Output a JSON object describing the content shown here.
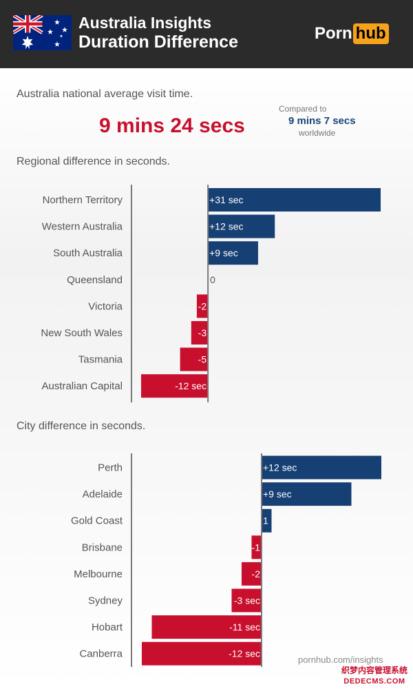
{
  "header": {
    "title_line1": "Australia Insights",
    "title_line2": "Duration Difference",
    "logo_part1": "Porn",
    "logo_part2": "hub",
    "flag": "australia-flag-icon"
  },
  "summary": {
    "intro": "Australia national average visit time.",
    "national_value": "9 mins 24 secs",
    "compare_label": "Compared to",
    "compare_value": "9 mins 7 secs",
    "compare_suffix": "worldwide"
  },
  "sections": {
    "regional_title": "Regional difference in seconds.",
    "city_title": "City difference in seconds."
  },
  "footer": {
    "source": "pornhub.com/insights",
    "watermark_line1": "织梦内容管理系统",
    "watermark_line2": "DEDECMS.COM"
  },
  "colors": {
    "positive": "#163f73",
    "negative": "#c8102e",
    "header_bg": "#2b2b2b",
    "accent": "#f7a21b",
    "axis": "#7a7a7a"
  },
  "chart_data": [
    {
      "type": "bar",
      "orientation": "horizontal",
      "title": "Regional difference in seconds.",
      "categories": [
        "Northern Territory",
        "Western Australia",
        "South Australia",
        "Queensland",
        "Victoria",
        "New South Wales",
        "Tasmania",
        "Australian Capital"
      ],
      "values": [
        31,
        12,
        9,
        0,
        -2,
        -3,
        -5,
        -12
      ],
      "data_labels": [
        "+31 sec",
        "+12 sec",
        "+9 sec",
        "0",
        "-2",
        "-3",
        "-5",
        "-12 sec"
      ],
      "xlim": [
        -12,
        31
      ]
    },
    {
      "type": "bar",
      "orientation": "horizontal",
      "title": "City difference in seconds.",
      "categories": [
        "Perth",
        "Adelaide",
        "Gold Coast",
        "Brisbane",
        "Melbourne",
        "Sydney",
        "Hobart",
        "Canberra"
      ],
      "values": [
        12,
        9,
        1,
        -1,
        -2,
        -3,
        -11,
        -12
      ],
      "data_labels": [
        "+12 sec",
        "+9 sec",
        "1",
        "-1",
        "-2",
        "-3 sec",
        "-11 sec",
        "-12 sec"
      ],
      "xlim": [
        -12,
        12
      ]
    }
  ]
}
